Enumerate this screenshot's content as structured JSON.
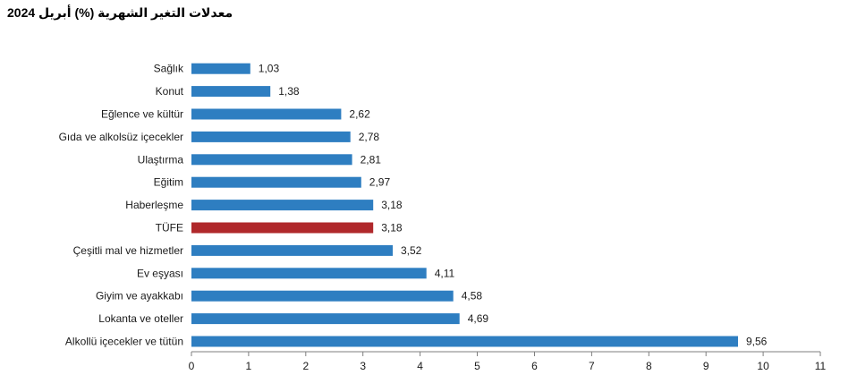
{
  "title": "معدلات التغير الشهرية (%) أبريل 2024",
  "chart_data": {
    "type": "bar",
    "orientation": "horizontal",
    "title": "معدلات التغير الشهرية (%) أبريل 2024",
    "xlabel": "",
    "ylabel": "",
    "xlim": [
      0,
      11
    ],
    "x_ticks": [
      "0",
      "1",
      "2",
      "3",
      "4",
      "5",
      "6",
      "7",
      "8",
      "9",
      "10",
      "11"
    ],
    "grid": false,
    "categories": [
      "Sağlık",
      "Konut",
      "Eğlence ve kültür",
      "Gıda ve alkolsüz içecekler",
      "Ulaştırma",
      "Eğitim",
      "Haberleşme",
      "TÜFE",
      "Çeşitli mal ve hizmetler",
      "Ev eşyası",
      "Giyim ve ayakkabı",
      "Lokanta ve oteller",
      "Alkollü içecekler ve tütün"
    ],
    "values": [
      1.03,
      1.38,
      2.62,
      2.78,
      2.81,
      2.97,
      3.18,
      3.18,
      3.52,
      4.11,
      4.58,
      4.69,
      9.56
    ],
    "value_labels": [
      "1,03",
      "1,38",
      "2,62",
      "2,78",
      "2,81",
      "2,97",
      "3,18",
      "3,18",
      "3,52",
      "4,11",
      "4,58",
      "4,69",
      "9,56"
    ],
    "colors": {
      "default": "#2e7ec1",
      "highlight": "#b0282b",
      "axis": "#7f7f7f"
    },
    "highlight_category": "TÜFE"
  }
}
